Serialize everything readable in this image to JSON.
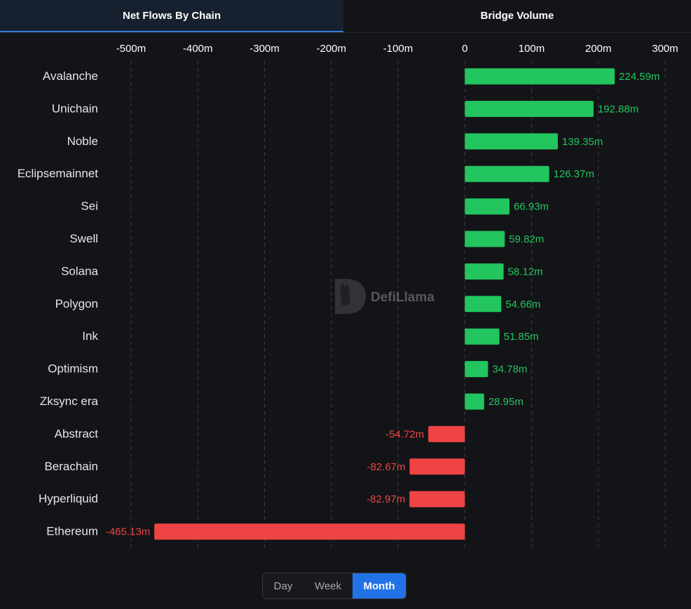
{
  "tabs": {
    "net_flows_label": "Net Flows By Chain",
    "bridge_volume_label": "Bridge Volume"
  },
  "watermark": {
    "text": "DefiLlama"
  },
  "period_toggle": {
    "day_label": "Day",
    "week_label": "Week",
    "month_label": "Month",
    "selected": "Month"
  },
  "colors": {
    "positive": "#22c55e",
    "negative": "#ef4444",
    "accent": "#2172e5"
  },
  "chart_data": {
    "type": "bar",
    "orientation": "horizontal",
    "title": "Net Flows By Chain",
    "xlabel": "",
    "ylabel": "",
    "xlim": [
      -500,
      300
    ],
    "x_ticks": [
      -500,
      -400,
      -300,
      -200,
      -100,
      0,
      100,
      200,
      300
    ],
    "x_tick_labels": [
      "-500m",
      "-400m",
      "-300m",
      "-200m",
      "-100m",
      "0",
      "100m",
      "200m",
      "300m"
    ],
    "grid": "vertical dashed",
    "unit": "m",
    "categories": [
      "Avalanche",
      "Unichain",
      "Noble",
      "Eclipsemainnet",
      "Sei",
      "Swell",
      "Solana",
      "Polygon",
      "Ink",
      "Optimism",
      "Zksync era",
      "Abstract",
      "Berachain",
      "Hyperliquid",
      "Ethereum"
    ],
    "values": [
      224.59,
      192.88,
      139.35,
      126.37,
      66.93,
      59.82,
      58.12,
      54.66,
      51.85,
      34.78,
      28.95,
      -54.72,
      -82.67,
      -82.97,
      -465.13
    ],
    "value_labels": [
      "224.59m",
      "192.88m",
      "139.35m",
      "126.37m",
      "66.93m",
      "59.82m",
      "58.12m",
      "54.66m",
      "51.85m",
      "34.78m",
      "28.95m",
      "-54.72m",
      "-82.67m",
      "-82.97m",
      "-465.13m"
    ]
  }
}
